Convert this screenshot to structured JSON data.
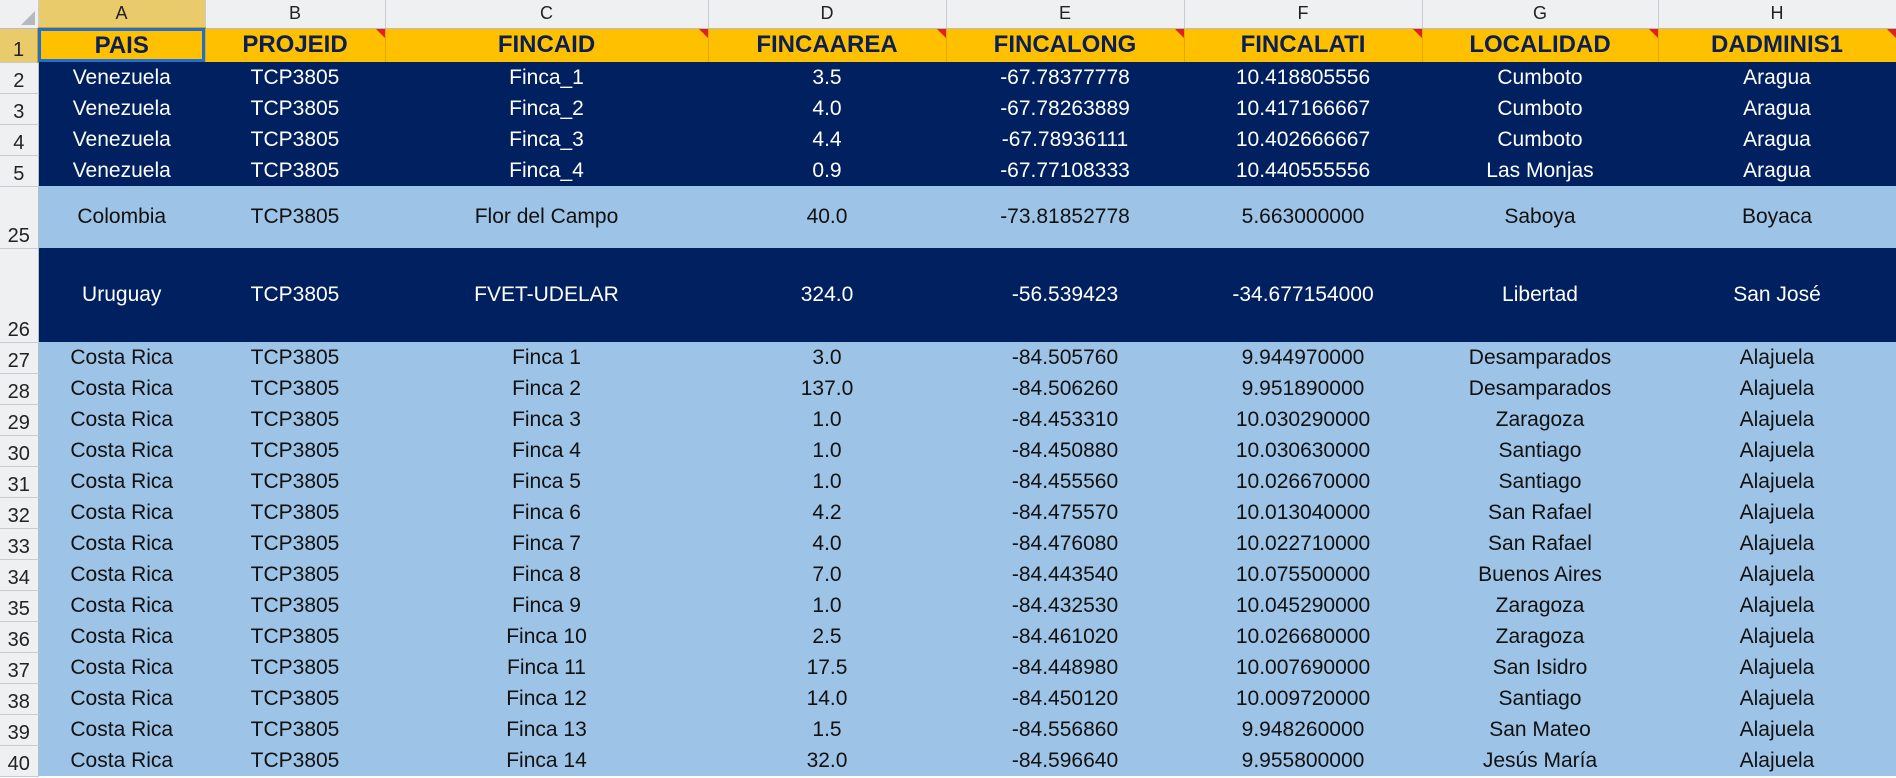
{
  "columns": [
    "A",
    "B",
    "C",
    "D",
    "E",
    "F",
    "G",
    "H"
  ],
  "header": {
    "row_number": "1",
    "cells": [
      "PAIS",
      "PROJEID",
      "FINCAID",
      "FINCAAREA",
      "FINCALONG",
      "FINCALATI",
      "LOCALIDAD",
      "DADMINIS1"
    ]
  },
  "rows": [
    {
      "num": "2",
      "cells": [
        "Venezuela",
        "TCP3805",
        "Finca_1",
        "3.5",
        "-67.78377778",
        "10.418805556",
        "Cumboto",
        "Aragua"
      ]
    },
    {
      "num": "3",
      "cells": [
        "Venezuela",
        "TCP3805",
        "Finca_2",
        "4.0",
        "-67.78263889",
        "10.417166667",
        "Cumboto",
        "Aragua"
      ]
    },
    {
      "num": "4",
      "cells": [
        "Venezuela",
        "TCP3805",
        "Finca_3",
        "4.4",
        "-67.78936111",
        "10.402666667",
        "Cumboto",
        "Aragua"
      ]
    },
    {
      "num": "5",
      "cells": [
        "Venezuela",
        "TCP3805",
        "Finca_4",
        "0.9",
        "-67.77108333",
        "10.440555556",
        "Las Monjas",
        "Aragua"
      ]
    },
    {
      "num": "25",
      "cells": [
        "Colombia",
        "TCP3805",
        "Flor del Campo",
        "40.0",
        "-73.81852778",
        "5.663000000",
        "Saboya",
        "Boyaca"
      ]
    },
    {
      "num": "26",
      "cells": [
        "Uruguay",
        "TCP3805",
        "FVET-UDELAR",
        "324.0",
        "-56.539423",
        "-34.677154000",
        "Libertad",
        "San José"
      ]
    },
    {
      "num": "27",
      "cells": [
        "Costa Rica",
        "TCP3805",
        "Finca 1",
        "3.0",
        "-84.505760",
        "9.944970000",
        "Desamparados",
        "Alajuela"
      ]
    },
    {
      "num": "28",
      "cells": [
        "Costa Rica",
        "TCP3805",
        "Finca 2",
        "137.0",
        "-84.506260",
        "9.951890000",
        "Desamparados",
        "Alajuela"
      ]
    },
    {
      "num": "29",
      "cells": [
        "Costa Rica",
        "TCP3805",
        "Finca 3",
        "1.0",
        "-84.453310",
        "10.030290000",
        "Zaragoza",
        "Alajuela"
      ]
    },
    {
      "num": "30",
      "cells": [
        "Costa Rica",
        "TCP3805",
        "Finca 4",
        "1.0",
        "-84.450880",
        "10.030630000",
        "Santiago",
        "Alajuela"
      ]
    },
    {
      "num": "31",
      "cells": [
        "Costa Rica",
        "TCP3805",
        "Finca 5",
        "1.0",
        "-84.455560",
        "10.026670000",
        "Santiago",
        "Alajuela"
      ]
    },
    {
      "num": "32",
      "cells": [
        "Costa Rica",
        "TCP3805",
        "Finca 6",
        "4.2",
        "-84.475570",
        "10.013040000",
        "San Rafael",
        "Alajuela"
      ]
    },
    {
      "num": "33",
      "cells": [
        "Costa Rica",
        "TCP3805",
        "Finca 7",
        "4.0",
        "-84.476080",
        "10.022710000",
        "San Rafael",
        "Alajuela"
      ]
    },
    {
      "num": "34",
      "cells": [
        "Costa Rica",
        "TCP3805",
        "Finca 8",
        "7.0",
        "-84.443540",
        "10.075500000",
        "Buenos Aires",
        "Alajuela"
      ]
    },
    {
      "num": "35",
      "cells": [
        "Costa Rica",
        "TCP3805",
        "Finca 9",
        "1.0",
        "-84.432530",
        "10.045290000",
        "Zaragoza",
        "Alajuela"
      ]
    },
    {
      "num": "36",
      "cells": [
        "Costa Rica",
        "TCP3805",
        "Finca 10",
        "2.5",
        "-84.461020",
        "10.026680000",
        "Zaragoza",
        "Alajuela"
      ]
    },
    {
      "num": "37",
      "cells": [
        "Costa Rica",
        "TCP3805",
        "Finca 11",
        "17.5",
        "-84.448980",
        "10.007690000",
        "San Isidro",
        "Alajuela"
      ]
    },
    {
      "num": "38",
      "cells": [
        "Costa Rica",
        "TCP3805",
        "Finca 12",
        "14.0",
        "-84.450120",
        "10.009720000",
        "Santiago",
        "Alajuela"
      ]
    },
    {
      "num": "39",
      "cells": [
        "Costa Rica",
        "TCP3805",
        "Finca 13",
        "1.5",
        "-84.556860",
        "9.948260000",
        "San Mateo",
        "Alajuela"
      ]
    },
    {
      "num": "40",
      "cells": [
        "Costa Rica",
        "TCP3805",
        "Finca 14",
        "32.0",
        "-84.596640",
        "9.955800000",
        "Jesús María",
        "Alajuela"
      ]
    }
  ],
  "colors": {
    "header_fill": "#ffc000",
    "header_text": "#0b1f55",
    "dark_band": "#002060",
    "light_band": "#9dc3e6",
    "selection": "#1f6fd0",
    "comment_marker": "#e02020"
  }
}
